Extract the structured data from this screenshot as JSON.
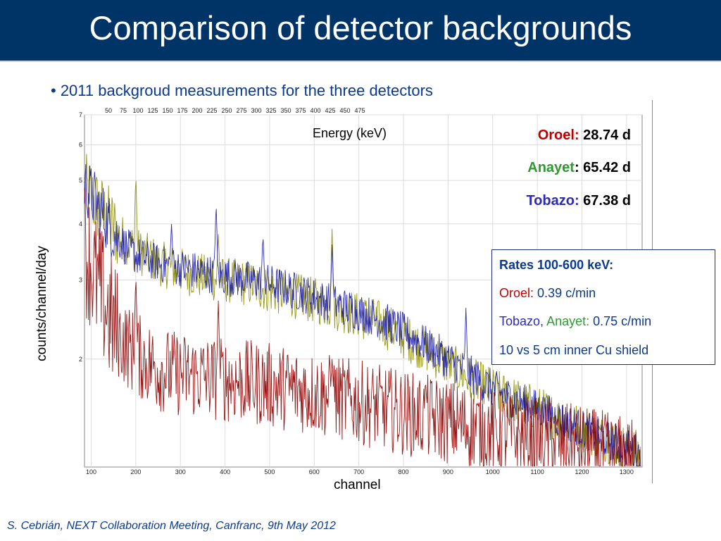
{
  "slide": {
    "title": "Comparison of detector backgrounds",
    "bullet": "• 2011 backgroud measurements for the three detectors",
    "footer": "S. Cebrián, NEXT Collaboration Meeting, Canfranc, 9th May 2012",
    "energy_axis_label": "Energy (keV)",
    "y_axis_label": "counts/channel/day",
    "x_axis_label": "channel"
  },
  "exposures": [
    {
      "name": "Oroel:",
      "value": "28.74 d",
      "color": "#c00000"
    },
    {
      "name": "Anayet",
      "value": ": 65.42 d",
      "color": "#2f9a2f"
    },
    {
      "name": "Tobazo:",
      "value": "67.38 d",
      "color": "#2b2bb5"
    }
  ],
  "rates_box": {
    "heading": "Rates 100-600 keV:",
    "oroel_name": "Oroel:",
    "oroel_value": "0.39 c/min",
    "tobazo_name": "Tobazo,",
    "anayet_name": "Anayet:",
    "tobazo_anayet_value": "0.75 c/min",
    "shield_note": "10 vs 5 cm inner Cu shield"
  },
  "colors": {
    "title_bar": "#003366",
    "oroel_trace": "#8b0000",
    "anayet_trace": "#8a8a00",
    "tobazo_trace": "#1a1aa8",
    "oroel_text": "#c00000",
    "anayet_text": "#2f9a2f",
    "tobazo_text": "#2b2bb5",
    "rates_text": "#0b3a8c"
  },
  "chart_data": {
    "type": "line",
    "title": "",
    "xlabel": "channel",
    "ylabel": "counts/channel/day",
    "x2label": "Energy (keV)",
    "xlim": [
      85,
      1335
    ],
    "ylim": [
      1.15,
      7
    ],
    "y_scale": "log",
    "grid": true,
    "x_ticks": [
      "100",
      "200",
      "300",
      "400",
      "500",
      "600",
      "700",
      "800",
      "900",
      "1000",
      "1100",
      "1200",
      "1300"
    ],
    "x2_ticks": [
      "50",
      "75",
      "100",
      "125",
      "150",
      "175",
      "200",
      "225",
      "250",
      "275",
      "300",
      "325",
      "350",
      "375",
      "400",
      "425",
      "450",
      "475"
    ],
    "y_ticks": [
      "2",
      "3",
      "4",
      "5",
      "6",
      "7"
    ],
    "series": [
      {
        "name": "Anayet",
        "x": [
          85,
          120,
          160,
          200,
          260,
          300,
          350,
          400,
          450,
          500,
          550,
          600,
          650,
          700,
          750,
          800,
          850,
          900,
          950,
          1000,
          1050,
          1100,
          1150,
          1200,
          1250,
          1300,
          1330
        ],
        "y": [
          4.8,
          4.3,
          3.8,
          3.5,
          3.25,
          3.15,
          3.05,
          3.0,
          2.95,
          2.85,
          2.78,
          2.7,
          2.6,
          2.5,
          2.4,
          2.25,
          2.1,
          1.95,
          1.8,
          1.7,
          1.62,
          1.55,
          1.47,
          1.4,
          1.33,
          1.27,
          1.23
        ],
        "peaks": [
          {
            "x": 200,
            "y": 5.2
          },
          {
            "x": 385,
            "y": 3.8
          },
          {
            "x": 640,
            "y": 3.9
          }
        ]
      },
      {
        "name": "Tobazo",
        "x": [
          85,
          120,
          160,
          200,
          260,
          300,
          350,
          400,
          450,
          500,
          550,
          600,
          650,
          700,
          750,
          800,
          850,
          900,
          950,
          1000,
          1050,
          1100,
          1150,
          1200,
          1250,
          1300,
          1330
        ],
        "y": [
          4.9,
          4.3,
          3.7,
          3.4,
          3.25,
          3.2,
          3.12,
          3.05,
          3.0,
          2.95,
          2.85,
          2.75,
          2.65,
          2.55,
          2.45,
          2.3,
          2.15,
          2.0,
          1.85,
          1.72,
          1.62,
          1.55,
          1.47,
          1.4,
          1.33,
          1.27,
          1.23
        ],
        "peaks": [
          {
            "x": 280,
            "y": 4.0
          },
          {
            "x": 380,
            "y": 4.5
          },
          {
            "x": 485,
            "y": 3.8
          },
          {
            "x": 640,
            "y": 3.6
          },
          {
            "x": 940,
            "y": 2.6
          }
        ]
      },
      {
        "name": "Oroel",
        "x": [
          85,
          110,
          140,
          160,
          200,
          250,
          300,
          400,
          500,
          600,
          700,
          800,
          900,
          1000,
          1100,
          1200,
          1300,
          1330
        ],
        "y": [
          3.6,
          3.0,
          2.5,
          2.25,
          2.05,
          1.9,
          1.85,
          1.8,
          1.75,
          1.68,
          1.6,
          1.52,
          1.45,
          1.38,
          1.32,
          1.27,
          1.2,
          1.18
        ],
        "peaks": [
          {
            "x": 200,
            "y": 3.1
          },
          {
            "x": 385,
            "y": 2.7
          },
          {
            "x": 640,
            "y": 2.0
          },
          {
            "x": 850,
            "y": 1.75
          }
        ]
      }
    ]
  }
}
